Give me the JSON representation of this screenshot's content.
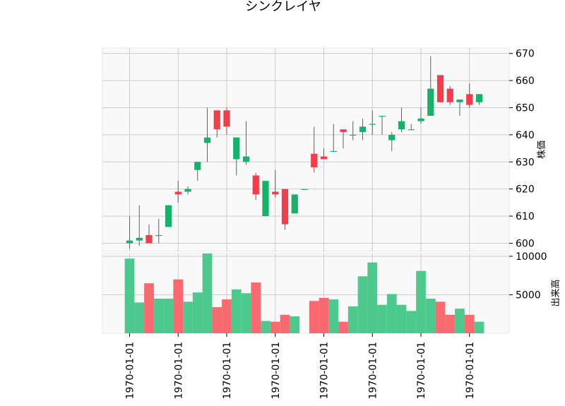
{
  "chart_data": {
    "type": "candlestick",
    "title": "シンクレイヤ",
    "price_ylabel": "株価",
    "volume_ylabel": "出来高",
    "style": "yahoo",
    "colors": {
      "up": "#17b26a",
      "down": "#f23d4a",
      "up_volume": "#4dc98e",
      "down_volume": "#f86a6f",
      "wick": "#606060"
    },
    "x_tick_labels": [
      "1970-01-01",
      "1970-01-01",
      "1970-01-01",
      "1970-01-01",
      "1970-01-01",
      "1970-01-01",
      "1970-01-01",
      "1970-01-01"
    ],
    "x_tick_positions": [
      0,
      5,
      10,
      15,
      20,
      25,
      30,
      35
    ],
    "price_ylim": [
      597,
      672
    ],
    "price_ticks": [
      600,
      610,
      620,
      630,
      640,
      650,
      660,
      670
    ],
    "volume_ylim": [
      0,
      10000
    ],
    "volume_tick_labels": [
      "10000",
      "5000"
    ],
    "volume_ticks": [
      10000,
      5000
    ],
    "grid": true,
    "candles": [
      {
        "open": 600,
        "high": 610,
        "low": 598,
        "close": 601,
        "volume": 9700
      },
      {
        "open": 601,
        "high": 614,
        "low": 599,
        "close": 602,
        "volume": 4000
      },
      {
        "open": 603,
        "high": 607,
        "low": 600,
        "close": 600,
        "volume": 6500
      },
      {
        "open": 603,
        "high": 609,
        "low": 600,
        "close": 603,
        "volume": 4500
      },
      {
        "open": 606,
        "high": 614,
        "low": 606,
        "close": 614,
        "volume": 4500
      },
      {
        "open": 619,
        "high": 623,
        "low": 615,
        "close": 618,
        "volume": 7000
      },
      {
        "open": 619,
        "high": 621,
        "low": 618,
        "close": 620,
        "volume": 4100
      },
      {
        "open": 627,
        "high": 630,
        "low": 623,
        "close": 630,
        "volume": 5300
      },
      {
        "open": 637,
        "high": 650,
        "low": 630,
        "close": 639,
        "volume": 11500
      },
      {
        "open": 649,
        "high": 649,
        "low": 639,
        "close": 642,
        "volume": 3400
      },
      {
        "open": 649,
        "high": 650,
        "low": 640,
        "close": 643,
        "volume": 4400
      },
      {
        "open": 631,
        "high": 639,
        "low": 625,
        "close": 639,
        "volume": 5700
      },
      {
        "open": 630,
        "high": 645,
        "low": 629,
        "close": 632,
        "volume": 5200
      },
      {
        "open": 625,
        "high": 626,
        "low": 616,
        "close": 618,
        "volume": 6600
      },
      {
        "open": 610,
        "high": 623,
        "low": 610,
        "close": 623,
        "volume": 1600
      },
      {
        "open": 619,
        "high": 627,
        "low": 617,
        "close": 618,
        "volume": 1500
      },
      {
        "open": 620,
        "high": 620,
        "low": 605,
        "close": 607,
        "volume": 2400
      },
      {
        "open": 611,
        "high": 618,
        "low": 611,
        "close": 618,
        "volume": 2200
      },
      {
        "open": 620,
        "high": 620,
        "low": 620,
        "close": 620,
        "volume": 0
      },
      {
        "open": 633,
        "high": 643,
        "low": 626,
        "close": 628,
        "volume": 4200
      },
      {
        "open": 632,
        "high": 635,
        "low": 631,
        "close": 631,
        "volume": 4600
      },
      {
        "open": 634,
        "high": 644,
        "low": 634,
        "close": 634,
        "volume": 4400
      },
      {
        "open": 642,
        "high": 642,
        "low": 635,
        "close": 641,
        "volume": 1500
      },
      {
        "open": 640,
        "high": 645,
        "low": 638,
        "close": 640,
        "volume": 3500
      },
      {
        "open": 641,
        "high": 646,
        "low": 638,
        "close": 643,
        "volume": 7400
      },
      {
        "open": 644,
        "high": 649,
        "low": 640,
        "close": 644,
        "volume": 9200
      },
      {
        "open": 647,
        "high": 647,
        "low": 640,
        "close": 647,
        "volume": 3700
      },
      {
        "open": 638,
        "high": 641,
        "low": 634,
        "close": 640,
        "volume": 5100
      },
      {
        "open": 642,
        "high": 650,
        "low": 641,
        "close": 645,
        "volume": 3700
      },
      {
        "open": 642,
        "high": 644,
        "low": 642,
        "close": 642,
        "volume": 2900
      },
      {
        "open": 645,
        "high": 650,
        "low": 644,
        "close": 646,
        "volume": 8100
      },
      {
        "open": 647,
        "high": 669,
        "low": 647,
        "close": 657,
        "volume": 4500
      },
      {
        "open": 662,
        "high": 662,
        "low": 652,
        "close": 652,
        "volume": 4100
      },
      {
        "open": 657,
        "high": 658,
        "low": 651,
        "close": 652,
        "volume": 2400
      },
      {
        "open": 652,
        "high": 653,
        "low": 647,
        "close": 653,
        "volume": 3200
      },
      {
        "open": 655,
        "high": 659,
        "low": 650,
        "close": 651,
        "volume": 2400
      },
      {
        "open": 652,
        "high": 655,
        "low": 651,
        "close": 655,
        "volume": 1500
      }
    ]
  }
}
